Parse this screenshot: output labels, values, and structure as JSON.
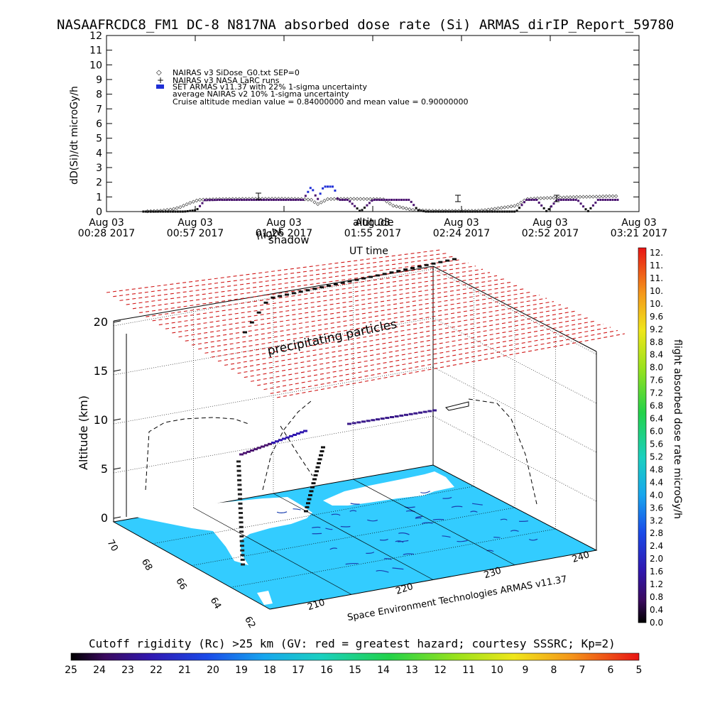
{
  "figure": {
    "title": "NASAAFRCDC8_FM1 DC-8   N817NA absorbed dose rate (Si) ARMAS_dirIP_Report_59780",
    "footer_credit": "Space Environment Technologies ARMAS v11.37"
  },
  "colors": {
    "nairas_v3_sidose": "#444444",
    "nairas_v3_larc": "#000000",
    "armas_measured": "#1f2fd6",
    "cutoff_grid": "#d01818",
    "ocean": "#33ccff",
    "land": "#ffffff"
  },
  "chart_data": [
    {
      "id": "timeseries",
      "type": "scatter",
      "xlabel": "UT time",
      "ylabel": "dD(Si)/dt microGy/h",
      "ylim": [
        0,
        12
      ],
      "yticks": [
        "0",
        "1",
        "2",
        "3",
        "4",
        "5",
        "6",
        "7",
        "8",
        "9",
        "10",
        "11",
        "12"
      ],
      "xticks": [
        {
          "date": "Aug 03",
          "time": "00:28 2017"
        },
        {
          "date": "Aug 03",
          "time": "00:57 2017"
        },
        {
          "date": "Aug 03",
          "time": "01:26 2017"
        },
        {
          "date": "Aug 03",
          "time": "01:55 2017"
        },
        {
          "date": "Aug 03",
          "time": "02:24 2017"
        },
        {
          "date": "Aug 03",
          "time": "02:52 2017"
        },
        {
          "date": "Aug 03",
          "time": "03:21 2017"
        }
      ],
      "xlim_minutes_after_0028": [
        0,
        173
      ],
      "legend": {
        "placement": "top-left",
        "entries": [
          {
            "symbol": "◇",
            "label": "NAIRAS v3 SiDose_G0.txt SEP=0"
          },
          {
            "symbol": "+",
            "label": "NAIRAS v3 NASA LaRC runs"
          },
          {
            "symbol": "■",
            "label": "SET ARMAS v11.37 with 22% 1-sigma uncertainty"
          },
          {
            "symbol": "",
            "label": "average NAIRAS v2 10% 1-sigma uncertainty"
          },
          {
            "symbol": "",
            "label": "Cruise altitude median value = 0.84000000 and mean value = 0.90000000"
          }
        ]
      },
      "overlaid_labels": [
        "shadow",
        "flight",
        "altitude"
      ],
      "series": [
        {
          "name": "NAIRAS v3 SiDose_G0.txt SEP=0",
          "t_minutes": [
            20,
            26,
            32,
            36,
            40,
            45,
            55,
            70,
            85,
            95,
            100,
            103,
            108,
            113,
            120,
            125,
            135,
            140,
            150,
            160,
            165,
            170,
            175,
            180,
            185,
            190,
            200,
            205,
            210,
            220,
            230,
            240,
            245,
            250
          ],
          "values": [
            0.02,
            0.05,
            0.15,
            0.3,
            0.55,
            0.8,
            0.85,
            0.87,
            0.88,
            0.86,
            0.8,
            0.5,
            0.85,
            0.87,
            0.87,
            0.86,
            0.85,
            0.4,
            0.1,
            0.05,
            0.05,
            0.05,
            0.05,
            0.05,
            0.1,
            0.2,
            0.4,
            0.85,
            0.9,
            0.95,
            1.0,
            1.02,
            1.05,
            1.05
          ]
        },
        {
          "name": "SET ARMAS v11.37 with 22% 1-sigma uncertainty",
          "t_minutes": [
            18,
            25,
            32,
            38,
            44,
            48,
            55,
            65,
            80,
            92,
            96,
            100,
            103,
            106,
            109,
            111,
            113,
            118,
            124,
            130,
            140,
            148,
            152,
            156,
            165,
            175,
            185,
            195,
            200,
            205,
            210,
            215,
            220,
            225,
            230,
            235,
            240,
            245,
            250
          ],
          "values": [
            0,
            0,
            0,
            0,
            0.1,
            0.78,
            0.8,
            0.8,
            0.8,
            0.8,
            0.8,
            1.7,
            0.8,
            1.7,
            1.7,
            1.7,
            0.8,
            0.8,
            0.0,
            0.8,
            0.8,
            0.8,
            0.1,
            0.0,
            0.0,
            0.0,
            0.0,
            0.0,
            0.0,
            0.8,
            0.8,
            0.0,
            0.8,
            0.8,
            0.8,
            0.0,
            0.8,
            0.8,
            0.8
          ]
        }
      ]
    },
    {
      "id": "map3d",
      "type": "scatter",
      "zlabel": "Altitude (km)",
      "zticks": [
        "0",
        "5",
        "10",
        "15",
        "20"
      ],
      "zlim": [
        0,
        22
      ],
      "lat_ticks": [
        "70",
        "68",
        "66",
        "64",
        "62"
      ],
      "lon_ticks": [
        "210",
        "220",
        "230",
        "240"
      ],
      "annotation": "precipitating particles",
      "colorbar_dose": {
        "label": "flight absorbed dose rate microGy/h",
        "ticks": [
          "12.",
          "11.",
          "11.",
          "10.",
          "10.",
          "9.6",
          "9.2",
          "8.8",
          "8.4",
          "8.0",
          "7.6",
          "7.2",
          "6.8",
          "6.4",
          "6.0",
          "5.6",
          "5.2",
          "4.8",
          "4.4",
          "4.0",
          "3.6",
          "3.2",
          "2.8",
          "2.4",
          "2.0",
          "1.6",
          "1.2",
          "0.8",
          "0.4",
          "0.0"
        ]
      },
      "colorbar_rigidity": {
        "label": "Cutoff rigidity (Rc) >25 km (GV: red = greatest hazard; courtesy SSSRC; Kp=2)",
        "ticks": [
          "25",
          "24",
          "23",
          "22",
          "21",
          "20",
          "19",
          "18",
          "17",
          "16",
          "15",
          "14",
          "13",
          "12",
          "11",
          "10",
          "9",
          "8",
          "7",
          "6",
          "5"
        ]
      }
    }
  ]
}
